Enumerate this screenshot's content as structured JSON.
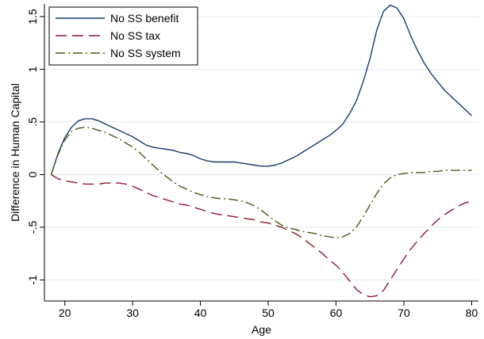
{
  "chart_data": {
    "type": "line",
    "xlabel": "Age",
    "ylabel": "Difference in Human Capital",
    "xlim": [
      17,
      81
    ],
    "ylim": [
      -1.2,
      1.62
    ],
    "xticks": [
      20,
      30,
      40,
      50,
      60,
      70,
      80
    ],
    "xtick_labels": [
      "20",
      "30",
      "40",
      "50",
      "60",
      "70",
      "80"
    ],
    "yticks": [
      -1,
      -0.5,
      0,
      0.5,
      1,
      1.5
    ],
    "ytick_labels": [
      "-1",
      "-.5",
      "0",
      ".5",
      "1",
      "1.5"
    ],
    "grid": "horizontal",
    "legend": "top-left",
    "series": [
      {
        "name": "No SS benefit",
        "color": "#1a3a6b",
        "dash": "solid",
        "x": [
          18,
          19,
          20,
          21,
          22,
          23,
          24,
          25,
          26,
          27,
          28,
          29,
          30,
          31,
          32,
          33,
          34,
          35,
          36,
          37,
          38,
          39,
          40,
          41,
          42,
          43,
          44,
          45,
          46,
          47,
          48,
          49,
          50,
          51,
          52,
          53,
          54,
          55,
          56,
          57,
          58,
          59,
          60,
          61,
          62,
          63,
          64,
          65,
          66,
          67,
          68,
          69,
          70,
          71,
          72,
          73,
          74,
          75,
          76,
          77,
          78,
          79,
          80
        ],
        "y": [
          0.0,
          0.2,
          0.35,
          0.45,
          0.51,
          0.53,
          0.53,
          0.51,
          0.48,
          0.45,
          0.42,
          0.39,
          0.36,
          0.32,
          0.28,
          0.26,
          0.25,
          0.24,
          0.23,
          0.21,
          0.2,
          0.18,
          0.15,
          0.13,
          0.12,
          0.12,
          0.12,
          0.12,
          0.11,
          0.1,
          0.09,
          0.08,
          0.08,
          0.09,
          0.11,
          0.14,
          0.17,
          0.21,
          0.25,
          0.29,
          0.33,
          0.37,
          0.42,
          0.48,
          0.58,
          0.7,
          0.88,
          1.1,
          1.37,
          1.55,
          1.61,
          1.58,
          1.48,
          1.32,
          1.18,
          1.06,
          0.96,
          0.88,
          0.8,
          0.74,
          0.68,
          0.62,
          0.56
        ]
      },
      {
        "name": "No SS tax",
        "color": "#8b1a2b",
        "dash": "long-dash",
        "x": [
          18,
          19,
          20,
          21,
          22,
          23,
          24,
          25,
          26,
          27,
          28,
          29,
          30,
          31,
          32,
          33,
          34,
          35,
          36,
          37,
          38,
          39,
          40,
          41,
          42,
          43,
          44,
          45,
          46,
          47,
          48,
          49,
          50,
          51,
          52,
          53,
          54,
          55,
          56,
          57,
          58,
          59,
          60,
          61,
          62,
          63,
          64,
          65,
          66,
          67,
          68,
          69,
          70,
          71,
          72,
          73,
          74,
          75,
          76,
          77,
          78,
          79,
          80
        ],
        "y": [
          0.0,
          -0.04,
          -0.06,
          -0.07,
          -0.08,
          -0.09,
          -0.09,
          -0.09,
          -0.08,
          -0.08,
          -0.08,
          -0.09,
          -0.11,
          -0.14,
          -0.17,
          -0.2,
          -0.22,
          -0.24,
          -0.26,
          -0.28,
          -0.29,
          -0.31,
          -0.33,
          -0.35,
          -0.37,
          -0.38,
          -0.39,
          -0.4,
          -0.41,
          -0.42,
          -0.43,
          -0.45,
          -0.46,
          -0.48,
          -0.5,
          -0.53,
          -0.56,
          -0.6,
          -0.65,
          -0.7,
          -0.75,
          -0.81,
          -0.86,
          -0.93,
          -1.01,
          -1.09,
          -1.14,
          -1.16,
          -1.15,
          -1.1,
          -1.0,
          -0.9,
          -0.8,
          -0.71,
          -0.63,
          -0.56,
          -0.49,
          -0.43,
          -0.38,
          -0.34,
          -0.3,
          -0.27,
          -0.25
        ]
      },
      {
        "name": "No SS system",
        "color": "#4a5a1a",
        "dash": "dash-dot",
        "x": [
          18,
          19,
          20,
          21,
          22,
          23,
          24,
          25,
          26,
          27,
          28,
          29,
          30,
          31,
          32,
          33,
          34,
          35,
          36,
          37,
          38,
          39,
          40,
          41,
          42,
          43,
          44,
          45,
          46,
          47,
          48,
          49,
          50,
          51,
          52,
          53,
          54,
          55,
          56,
          57,
          58,
          59,
          60,
          61,
          62,
          63,
          64,
          65,
          66,
          67,
          68,
          69,
          70,
          71,
          72,
          73,
          74,
          75,
          76,
          77,
          78,
          79,
          80
        ],
        "y": [
          0.0,
          0.19,
          0.33,
          0.41,
          0.44,
          0.45,
          0.44,
          0.42,
          0.4,
          0.37,
          0.34,
          0.3,
          0.26,
          0.21,
          0.15,
          0.09,
          0.03,
          -0.02,
          -0.07,
          -0.11,
          -0.14,
          -0.17,
          -0.19,
          -0.21,
          -0.22,
          -0.23,
          -0.23,
          -0.24,
          -0.25,
          -0.27,
          -0.3,
          -0.34,
          -0.39,
          -0.44,
          -0.48,
          -0.51,
          -0.52,
          -0.54,
          -0.55,
          -0.56,
          -0.58,
          -0.59,
          -0.6,
          -0.59,
          -0.56,
          -0.5,
          -0.4,
          -0.29,
          -0.18,
          -0.09,
          -0.03,
          0.0,
          0.01,
          0.02,
          0.02,
          0.02,
          0.03,
          0.03,
          0.04,
          0.04,
          0.04,
          0.04,
          0.04
        ]
      }
    ]
  }
}
